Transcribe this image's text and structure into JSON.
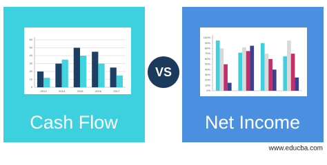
{
  "left_panel": {
    "title": "Cash Flow",
    "color": "#3dd0de",
    "chart": {
      "type": "bar",
      "categories": [
        "2013",
        "2014",
        "2015",
        "2016",
        "2017"
      ],
      "series": [
        {
          "color": "#1d3f66",
          "values": [
            20,
            30,
            50,
            45,
            25
          ]
        },
        {
          "color": "#42d3de",
          "values": [
            12,
            35,
            40,
            30,
            15
          ]
        }
      ],
      "ylim": [
        0,
        60
      ],
      "yticks": [
        0,
        10,
        20,
        30,
        40,
        50,
        60
      ],
      "grid": true
    }
  },
  "vs": "VS",
  "right_panel": {
    "title": "Net Income",
    "color": "#4a8fe0",
    "chart": {
      "type": "bar",
      "categories": [
        null,
        null,
        null,
        null
      ],
      "series": [
        {
          "color": "#3fd0e0",
          "values": [
            95,
            72,
            90,
            65
          ]
        },
        {
          "color": "#d9d9d9",
          "values": [
            80,
            82,
            70,
            95
          ]
        },
        {
          "color": "#c0306a",
          "values": [
            50,
            75,
            60,
            70
          ]
        },
        {
          "color": "#3a3f8f",
          "values": [
            15,
            85,
            40,
            25
          ]
        }
      ],
      "ylim": [
        0,
        100
      ],
      "yticks": [
        {
          "value": 0,
          "label": "0%"
        },
        {
          "value": 10,
          "label": "10%"
        },
        {
          "value": 20,
          "label": "20%"
        },
        {
          "value": 30,
          "label": "30%"
        },
        {
          "value": 40,
          "label": "40%"
        },
        {
          "value": 50,
          "label": "50%"
        },
        {
          "value": 60,
          "label": "60%"
        },
        {
          "value": 70,
          "label": "70%"
        },
        {
          "value": 80,
          "label": "80%"
        },
        {
          "value": 90,
          "label": "90%"
        },
        {
          "value": 100,
          "label": "100%"
        }
      ],
      "grid": false
    }
  },
  "footer": "www.educba.com"
}
